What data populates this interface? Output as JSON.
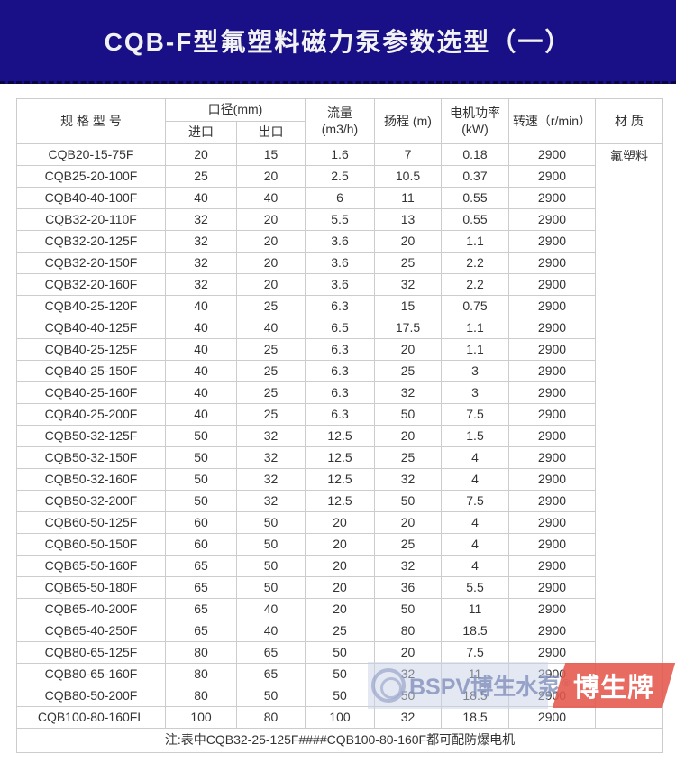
{
  "page": {
    "title": "CQB-F型氟塑料磁力泵参数选型（一）"
  },
  "colors": {
    "banner_bg": "#190f87",
    "banner_edge": "#0b0640",
    "table_border": "#cccccc",
    "text": "#333333",
    "watermark_red": "#e5564c",
    "watermark_blue": "#818fba"
  },
  "table": {
    "headers": {
      "model": "规 格 型 号",
      "diameter_group": "口径(mm)",
      "inlet": "进口",
      "outlet": "出口",
      "flow": "流量 (m3/h)",
      "head": "扬程 (m)",
      "power": "电机功率 (kW)",
      "speed": "转速（r/min）",
      "material": "材 质"
    },
    "material_value": "氟塑料",
    "rows": [
      {
        "model": "CQB20-15-75F",
        "inlet": "20",
        "outlet": "15",
        "flow": "1.6",
        "head": "7",
        "power": "0.18",
        "speed": "2900"
      },
      {
        "model": "CQB25-20-100F",
        "inlet": "25",
        "outlet": "20",
        "flow": "2.5",
        "head": "10.5",
        "power": "0.37",
        "speed": "2900"
      },
      {
        "model": "CQB40-40-100F",
        "inlet": "40",
        "outlet": "40",
        "flow": "6",
        "head": "11",
        "power": "0.55",
        "speed": "2900"
      },
      {
        "model": "CQB32-20-110F",
        "inlet": "32",
        "outlet": "20",
        "flow": "5.5",
        "head": "13",
        "power": "0.55",
        "speed": "2900"
      },
      {
        "model": "CQB32-20-125F",
        "inlet": "32",
        "outlet": "20",
        "flow": "3.6",
        "head": "20",
        "power": "1.1",
        "speed": "2900"
      },
      {
        "model": "CQB32-20-150F",
        "inlet": "32",
        "outlet": "20",
        "flow": "3.6",
        "head": "25",
        "power": "2.2",
        "speed": "2900"
      },
      {
        "model": "CQB32-20-160F",
        "inlet": "32",
        "outlet": "20",
        "flow": "3.6",
        "head": "32",
        "power": "2.2",
        "speed": "2900"
      },
      {
        "model": "CQB40-25-120F",
        "inlet": "40",
        "outlet": "25",
        "flow": "6.3",
        "head": "15",
        "power": "0.75",
        "speed": "2900"
      },
      {
        "model": "CQB40-40-125F",
        "inlet": "40",
        "outlet": "40",
        "flow": "6.5",
        "head": "17.5",
        "power": "1.1",
        "speed": "2900"
      },
      {
        "model": "CQB40-25-125F",
        "inlet": "40",
        "outlet": "25",
        "flow": "6.3",
        "head": "20",
        "power": "1.1",
        "speed": "2900"
      },
      {
        "model": "CQB40-25-150F",
        "inlet": "40",
        "outlet": "25",
        "flow": "6.3",
        "head": "25",
        "power": "3",
        "speed": "2900"
      },
      {
        "model": "CQB40-25-160F",
        "inlet": "40",
        "outlet": "25",
        "flow": "6.3",
        "head": "32",
        "power": "3",
        "speed": "2900"
      },
      {
        "model": "CQB40-25-200F",
        "inlet": "40",
        "outlet": "25",
        "flow": "6.3",
        "head": "50",
        "power": "7.5",
        "speed": "2900"
      },
      {
        "model": "CQB50-32-125F",
        "inlet": "50",
        "outlet": "32",
        "flow": "12.5",
        "head": "20",
        "power": "1.5",
        "speed": "2900"
      },
      {
        "model": "CQB50-32-150F",
        "inlet": "50",
        "outlet": "32",
        "flow": "12.5",
        "head": "25",
        "power": "4",
        "speed": "2900"
      },
      {
        "model": "CQB50-32-160F",
        "inlet": "50",
        "outlet": "32",
        "flow": "12.5",
        "head": "32",
        "power": "4",
        "speed": "2900"
      },
      {
        "model": "CQB50-32-200F",
        "inlet": "50",
        "outlet": "32",
        "flow": "12.5",
        "head": "50",
        "power": "7.5",
        "speed": "2900"
      },
      {
        "model": "CQB60-50-125F",
        "inlet": "60",
        "outlet": "50",
        "flow": "20",
        "head": "20",
        "power": "4",
        "speed": "2900"
      },
      {
        "model": "CQB60-50-150F",
        "inlet": "60",
        "outlet": "50",
        "flow": "20",
        "head": "25",
        "power": "4",
        "speed": "2900"
      },
      {
        "model": "CQB65-50-160F",
        "inlet": "65",
        "outlet": "50",
        "flow": "20",
        "head": "32",
        "power": "4",
        "speed": "2900"
      },
      {
        "model": "CQB65-50-180F",
        "inlet": "65",
        "outlet": "50",
        "flow": "20",
        "head": "36",
        "power": "5.5",
        "speed": "2900"
      },
      {
        "model": "CQB65-40-200F",
        "inlet": "65",
        "outlet": "40",
        "flow": "20",
        "head": "50",
        "power": "11",
        "speed": "2900"
      },
      {
        "model": "CQB65-40-250F",
        "inlet": "65",
        "outlet": "40",
        "flow": "25",
        "head": "80",
        "power": "18.5",
        "speed": "2900"
      },
      {
        "model": "CQB80-65-125F",
        "inlet": "80",
        "outlet": "65",
        "flow": "50",
        "head": "20",
        "power": "7.5",
        "speed": "2900"
      },
      {
        "model": "CQB80-65-160F",
        "inlet": "80",
        "outlet": "65",
        "flow": "50",
        "head": "32",
        "power": "11",
        "speed": "2900"
      },
      {
        "model": "CQB80-50-200F",
        "inlet": "80",
        "outlet": "50",
        "flow": "50",
        "head": "50",
        "power": "18.5",
        "speed": "2900"
      },
      {
        "model": "CQB100-80-160FL",
        "inlet": "100",
        "outlet": "80",
        "flow": "100",
        "head": "32",
        "power": "18.5",
        "speed": "2900"
      }
    ],
    "note": "注:表中CQB32-25-125F####CQB100-80-160F都可配防爆电机"
  },
  "watermark": {
    "brand_text": "BSPV博生水泵",
    "registered": "®",
    "badge": "博生牌"
  }
}
